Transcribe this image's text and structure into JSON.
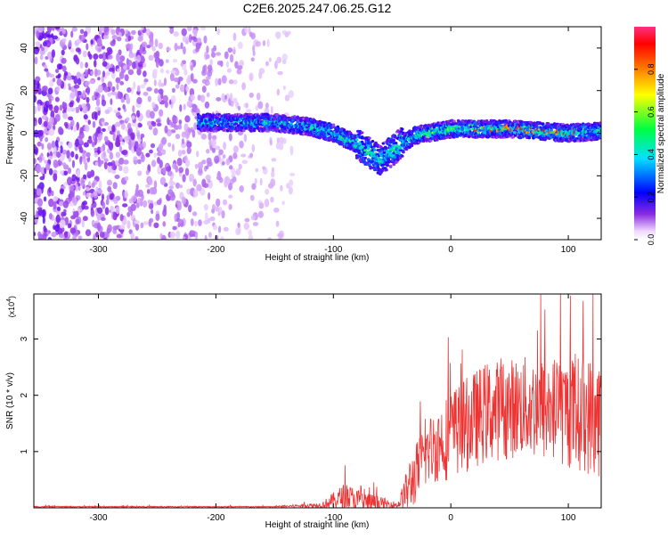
{
  "title": "C2E6.2025.247.06.25.G12",
  "chart_data": [
    {
      "type": "heatmap",
      "xlabel": "Height of straight line (km)",
      "ylabel": "Frequency (Hz)",
      "xlim": [
        -355,
        128
      ],
      "ylim": [
        -50,
        50
      ],
      "xticks": [
        -300,
        -200,
        -100,
        0,
        100
      ],
      "yticks": [
        -40,
        -20,
        0,
        20,
        40
      ],
      "colorbar": {
        "label": "Normalized spectral amplitude",
        "range": [
          0.0,
          1.0
        ],
        "ticks": [
          "0.0",
          "0.2",
          "0.4",
          "0.6",
          "0.8"
        ],
        "tick_values": [
          0.0,
          0.2,
          0.4,
          0.6,
          0.8
        ]
      },
      "ridge": {
        "description_points": [
          {
            "x": -210,
            "f": 5
          },
          {
            "x": -150,
            "f": 5
          },
          {
            "x": -120,
            "f": 3
          },
          {
            "x": -100,
            "f": 0
          },
          {
            "x": -80,
            "f": -5
          },
          {
            "x": -60,
            "f": -13
          },
          {
            "x": -45,
            "f": -6
          },
          {
            "x": -30,
            "f": -1
          },
          {
            "x": 0,
            "f": 2
          },
          {
            "x": 50,
            "f": 2
          },
          {
            "x": 100,
            "f": 0
          },
          {
            "x": 128,
            "f": 1
          }
        ]
      },
      "noise_region": {
        "x_from": -355,
        "x_to": -130
      }
    },
    {
      "type": "line",
      "xlabel": "Height of straight line (km)",
      "ylabel": "SNR (10 * v/v)",
      "scale_label": "(x10",
      "scale_exp": "4",
      "xlim": [
        -355,
        128
      ],
      "ylim": [
        0,
        3.8
      ],
      "xticks": [
        -300,
        -200,
        -100,
        0,
        100
      ],
      "yticks": [
        1,
        2,
        3
      ],
      "series": [
        {
          "name": "SNR",
          "color": "#ee3333",
          "envelope": [
            {
              "x": -355,
              "mean": 0.02,
              "spread": 0.01
            },
            {
              "x": -150,
              "mean": 0.02,
              "spread": 0.01
            },
            {
              "x": -110,
              "mean": 0.05,
              "spread": 0.05
            },
            {
              "x": -90,
              "mean": 0.2,
              "spread": 0.25
            },
            {
              "x": -75,
              "mean": 0.1,
              "spread": 0.2
            },
            {
              "x": -45,
              "mean": 0.05,
              "spread": 0.05
            },
            {
              "x": -35,
              "mean": 0.4,
              "spread": 0.5
            },
            {
              "x": -20,
              "mean": 1.0,
              "spread": 0.6
            },
            {
              "x": 0,
              "mean": 1.3,
              "spread": 0.8
            },
            {
              "x": 30,
              "mean": 1.7,
              "spread": 0.9
            },
            {
              "x": 60,
              "mean": 1.8,
              "spread": 0.9
            },
            {
              "x": 100,
              "mean": 1.7,
              "spread": 1.0
            },
            {
              "x": 128,
              "mean": 1.6,
              "spread": 1.1
            }
          ]
        }
      ]
    }
  ]
}
